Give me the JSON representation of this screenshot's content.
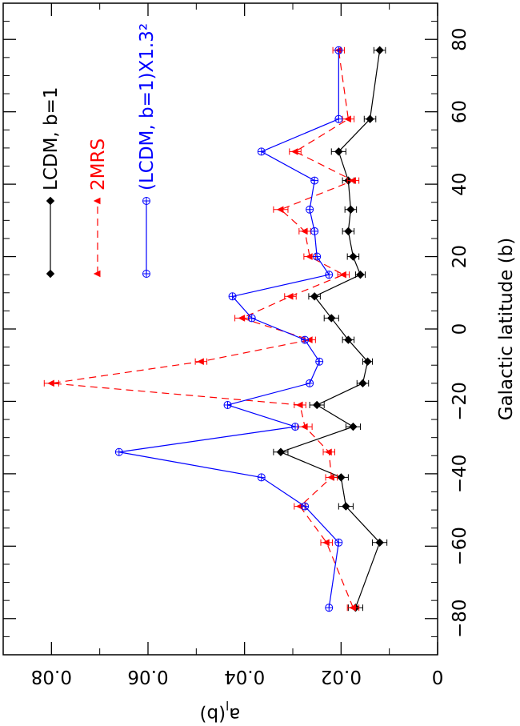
{
  "chart_data": {
    "type": "line",
    "xlabel": "Galactic latitude (b)",
    "ylabel": "a_l(b)",
    "xlim": [
      -90,
      90
    ],
    "ylim": [
      0,
      0.09
    ],
    "x_ticks": [
      -80,
      -60,
      -40,
      -20,
      0,
      20,
      40,
      60,
      80
    ],
    "x_tick_labels": [
      "−80",
      "−60",
      "−40",
      "−20",
      "0",
      "20",
      "40",
      "60",
      "80"
    ],
    "y_ticks": [
      0,
      0.02,
      0.04,
      0.06,
      0.08
    ],
    "y_tick_labels": [
      "0",
      "0.02",
      "0.04",
      "0.06",
      "0.08"
    ],
    "grid": false,
    "legend_position": "top-left",
    "orientation": "rotated 90 degrees clockwise",
    "series": [
      {
        "name": "LCDM, b=1",
        "color": "#000000",
        "line": "solid",
        "marker": "filled-diamond",
        "x": [
          -77,
          -59,
          -49,
          -41,
          -34,
          -27,
          -21,
          -15,
          -9,
          -3,
          3,
          9,
          15,
          20,
          27,
          33,
          41,
          49,
          58,
          77
        ],
        "y": [
          0.017,
          0.012,
          0.019,
          0.02,
          0.0325,
          0.0175,
          0.025,
          0.0155,
          0.0145,
          0.0185,
          0.022,
          0.0255,
          0.016,
          0.0175,
          0.0185,
          0.018,
          0.0185,
          0.0205,
          0.014,
          0.012
        ],
        "err": [
          0.0015,
          0.0015,
          0.0015,
          0.0015,
          0.0015,
          0.0015,
          0.0015,
          0.0012,
          0.001,
          0.0012,
          0.0015,
          0.0012,
          0.001,
          0.0012,
          0.0012,
          0.0012,
          0.0012,
          0.0015,
          0.0012,
          0.0012
        ]
      },
      {
        "name": "2MRS",
        "color": "#ff0000",
        "line": "dashed",
        "marker": "filled-triangle",
        "x": [
          -77,
          -59,
          -49,
          -41,
          -34,
          -27,
          -21,
          -15,
          -9,
          -3,
          3,
          9,
          15,
          20,
          27,
          33,
          41,
          49,
          58,
          77
        ],
        "y": [
          0.0175,
          0.023,
          0.0285,
          0.022,
          0.0225,
          0.0275,
          0.0285,
          0.08,
          0.049,
          0.0265,
          0.0405,
          0.0305,
          0.0195,
          0.0265,
          0.0275,
          0.0325,
          0.0175,
          0.0295,
          0.0185,
          0.0205
        ],
        "err": [
          0.0012,
          0.0012,
          0.0012,
          0.0012,
          0.0012,
          0.0015,
          0.0012,
          0.0015,
          0.0012,
          0.0012,
          0.0015,
          0.0012,
          0.0012,
          0.0012,
          0.0012,
          0.0015,
          0.0012,
          0.0012,
          0.0012,
          0.0012
        ]
      },
      {
        "name": "(LCDM, b=1)X1.3²",
        "color": "#0000ff",
        "line": "solid",
        "marker": "open-circle-plus",
        "x": [
          -77,
          -59,
          -49,
          -41,
          -34,
          -27,
          -21,
          -15,
          -9,
          -3,
          3,
          9,
          15,
          20,
          27,
          33,
          41,
          49,
          58,
          77
        ],
        "y": [
          0.0225,
          0.0205,
          0.0275,
          0.0365,
          0.066,
          0.0295,
          0.0435,
          0.0265,
          0.0245,
          0.0275,
          0.0385,
          0.0425,
          0.0225,
          0.025,
          0.0255,
          0.0265,
          0.0255,
          0.0365,
          0.0205,
          0.0205
        ],
        "err": []
      }
    ]
  },
  "legend": {
    "items": [
      {
        "label": "LCDM, b=1",
        "color": "#000000"
      },
      {
        "label": "2MRS",
        "color": "#ff0000"
      },
      {
        "label": "(LCDM, b=1)X1.3²",
        "color": "#0000ff"
      }
    ]
  }
}
